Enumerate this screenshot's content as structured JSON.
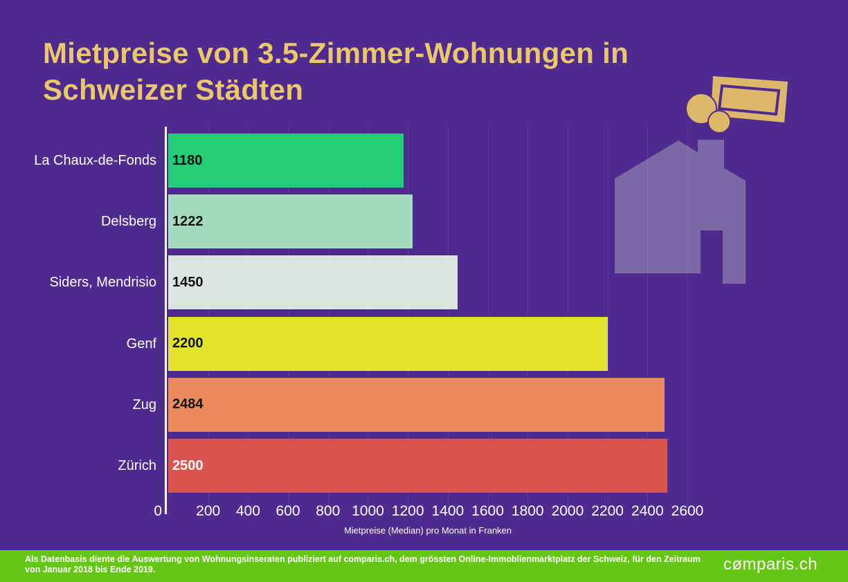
{
  "title": "Mietpreise von 3.5-Zimmer-Wohnungen in\nSchweizer Städten",
  "chart_data": {
    "type": "bar",
    "orientation": "horizontal",
    "title": "Mietpreise von 3.5-Zimmer-Wohnungen in Schweizer Städten",
    "categories": [
      "La Chaux-de-Fonds",
      "Delsberg",
      "Siders, Mendrisio",
      "Genf",
      "Zug",
      "Zürich"
    ],
    "values": [
      1180,
      1222,
      1450,
      2200,
      2484,
      2500
    ],
    "bar_colors": [
      "#23CD78",
      "#A7DBBE",
      "#DBE5E0",
      "#E2E32B",
      "#ED8A5B",
      "#DB5351"
    ],
    "value_label_colors": [
      "#111111",
      "#111111",
      "#111111",
      "#111111",
      "#111111",
      "#FFFFFF"
    ],
    "xlabel": "Mietpreise (Median) pro Monat in Franken",
    "ylabel": "",
    "xlim": [
      0,
      2600
    ],
    "xticks": [
      0,
      200,
      400,
      600,
      800,
      1000,
      1200,
      1400,
      1600,
      1800,
      2000,
      2200,
      2400,
      2600
    ],
    "grid": true,
    "legend": false
  },
  "icons": {
    "money": "banknote-with-two-coins",
    "house": "house-silhouette"
  },
  "footer": {
    "note": "Als Datenbasis diente die Auswertung von Wohnungsinseraten publiziert auf comparis.ch, dem grössten Online-Immoblienmarktplatz der Schweiz, für den Zeitraum\nvon Januar 2018 bis Ende 2019.",
    "logo": "cømparis.ch"
  },
  "colors": {
    "background": "#4F2B90",
    "title_text": "#EBC76B",
    "axis_text": "#FFFFFF",
    "footer_background": "#65C714",
    "footer_text": "#FFFFFF",
    "illustration_gold": "#DFB76A",
    "house_purple": "#7C68A5"
  }
}
